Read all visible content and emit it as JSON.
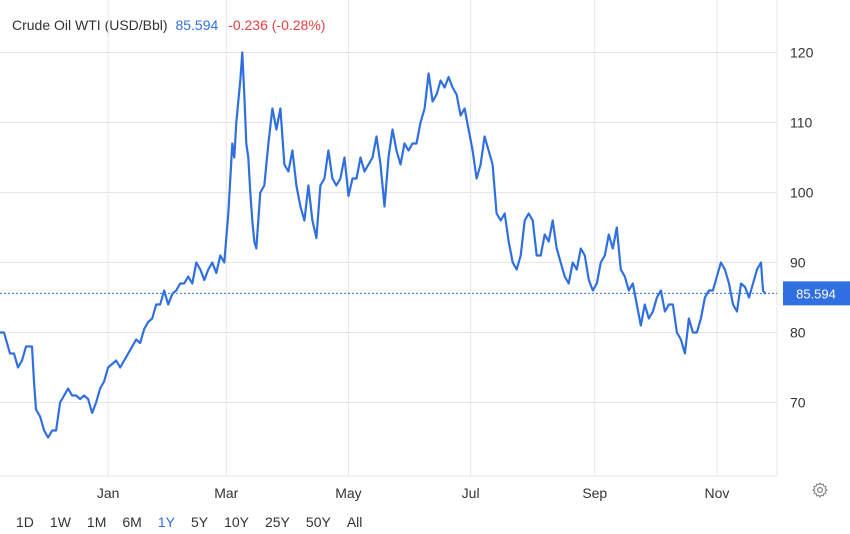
{
  "header": {
    "title": "Crude Oil WTI (USD/Bbl)",
    "price": "85.594",
    "change": "-0.236 (-0.28%)"
  },
  "current_label": "85.594",
  "ranges": [
    "1D",
    "1W",
    "1M",
    "6M",
    "1Y",
    "5Y",
    "10Y",
    "25Y",
    "50Y",
    "All"
  ],
  "active_range": "1Y",
  "icons": {
    "settings": "gear-icon"
  },
  "colors": {
    "line": "#2f6fdf",
    "negative": "#e5413f",
    "grid": "#e6e6e6"
  },
  "chart_data": {
    "type": "line",
    "title": "Crude Oil WTI (USD/Bbl)",
    "xlabel": "",
    "ylabel": "",
    "ylim": [
      59.5,
      127.5
    ],
    "yticks": [
      70,
      80,
      90,
      100,
      110,
      120
    ],
    "xticks": [
      {
        "label": "Jan",
        "date": "2022-01-01"
      },
      {
        "label": "Mar",
        "date": "2022-03-01"
      },
      {
        "label": "May",
        "date": "2022-05-01"
      },
      {
        "label": "Jul",
        "date": "2022-07-01"
      },
      {
        "label": "Sep",
        "date": "2022-09-01"
      },
      {
        "label": "Nov",
        "date": "2022-11-01"
      }
    ],
    "xrange": [
      "2021-11-08",
      "2022-11-25"
    ],
    "current_value": 85.594,
    "grid": true,
    "series": [
      {
        "points": [
          [
            "2021-11-08",
            80
          ],
          [
            "2021-11-10",
            80
          ],
          [
            "2021-11-13",
            77
          ],
          [
            "2021-11-15",
            77
          ],
          [
            "2021-11-17",
            75
          ],
          [
            "2021-11-19",
            76
          ],
          [
            "2021-11-21",
            78
          ],
          [
            "2021-11-24",
            78
          ],
          [
            "2021-11-25",
            73
          ],
          [
            "2021-11-26",
            69
          ],
          [
            "2021-11-28",
            68
          ],
          [
            "2021-11-30",
            66
          ],
          [
            "2021-12-02",
            65
          ],
          [
            "2021-12-04",
            66
          ],
          [
            "2021-12-06",
            66
          ],
          [
            "2021-12-08",
            70
          ],
          [
            "2021-12-10",
            71
          ],
          [
            "2021-12-12",
            72
          ],
          [
            "2021-12-14",
            71
          ],
          [
            "2021-12-16",
            71
          ],
          [
            "2021-12-18",
            70.5
          ],
          [
            "2021-12-20",
            71
          ],
          [
            "2021-12-22",
            70.5
          ],
          [
            "2021-12-24",
            68.5
          ],
          [
            "2021-12-26",
            70
          ],
          [
            "2021-12-28",
            72
          ],
          [
            "2021-12-30",
            73
          ],
          [
            "2022-01-01",
            75
          ],
          [
            "2022-01-03",
            75.5
          ],
          [
            "2022-01-05",
            76
          ],
          [
            "2022-01-07",
            75
          ],
          [
            "2022-01-09",
            76
          ],
          [
            "2022-01-11",
            77
          ],
          [
            "2022-01-13",
            78
          ],
          [
            "2022-01-15",
            79
          ],
          [
            "2022-01-17",
            78.5
          ],
          [
            "2022-01-19",
            80.5
          ],
          [
            "2022-01-21",
            81.5
          ],
          [
            "2022-01-23",
            82
          ],
          [
            "2022-01-25",
            84
          ],
          [
            "2022-01-27",
            84
          ],
          [
            "2022-01-29",
            86
          ],
          [
            "2022-01-31",
            84
          ],
          [
            "2022-02-02",
            85.5
          ],
          [
            "2022-02-04",
            86
          ],
          [
            "2022-02-06",
            87
          ],
          [
            "2022-02-08",
            87
          ],
          [
            "2022-02-10",
            88
          ],
          [
            "2022-02-12",
            87
          ],
          [
            "2022-02-14",
            90
          ],
          [
            "2022-02-16",
            89
          ],
          [
            "2022-02-18",
            87.5
          ],
          [
            "2022-02-20",
            89
          ],
          [
            "2022-02-22",
            90
          ],
          [
            "2022-02-24",
            88.5
          ],
          [
            "2022-02-26",
            91
          ],
          [
            "2022-02-28",
            90
          ],
          [
            "2022-03-02",
            97
          ],
          [
            "2022-03-04",
            107
          ],
          [
            "2022-03-05",
            105
          ],
          [
            "2022-03-06",
            110
          ],
          [
            "2022-03-07",
            113
          ],
          [
            "2022-03-08",
            116
          ],
          [
            "2022-03-09",
            120
          ],
          [
            "2022-03-10",
            114
          ],
          [
            "2022-03-11",
            107
          ],
          [
            "2022-03-12",
            105
          ],
          [
            "2022-03-13",
            100
          ],
          [
            "2022-03-14",
            96
          ],
          [
            "2022-03-15",
            93
          ],
          [
            "2022-03-16",
            92
          ],
          [
            "2022-03-18",
            100
          ],
          [
            "2022-03-20",
            101
          ],
          [
            "2022-03-22",
            107
          ],
          [
            "2022-03-24",
            112
          ],
          [
            "2022-03-26",
            109
          ],
          [
            "2022-03-28",
            112
          ],
          [
            "2022-03-30",
            104
          ],
          [
            "2022-04-01",
            103
          ],
          [
            "2022-04-03",
            106
          ],
          [
            "2022-04-05",
            101
          ],
          [
            "2022-04-07",
            98
          ],
          [
            "2022-04-09",
            96
          ],
          [
            "2022-04-11",
            101
          ],
          [
            "2022-04-13",
            96
          ],
          [
            "2022-04-15",
            93.5
          ],
          [
            "2022-04-17",
            101
          ],
          [
            "2022-04-19",
            102
          ],
          [
            "2022-04-21",
            106
          ],
          [
            "2022-04-23",
            102
          ],
          [
            "2022-04-25",
            101
          ],
          [
            "2022-04-27",
            102
          ],
          [
            "2022-04-29",
            105
          ],
          [
            "2022-05-01",
            99.5
          ],
          [
            "2022-05-03",
            102
          ],
          [
            "2022-05-05",
            102
          ],
          [
            "2022-05-07",
            105
          ],
          [
            "2022-05-09",
            103
          ],
          [
            "2022-05-11",
            104
          ],
          [
            "2022-05-13",
            105
          ],
          [
            "2022-05-15",
            108
          ],
          [
            "2022-05-17",
            104
          ],
          [
            "2022-05-19",
            98
          ],
          [
            "2022-05-21",
            105
          ],
          [
            "2022-05-23",
            109
          ],
          [
            "2022-05-25",
            106
          ],
          [
            "2022-05-27",
            104
          ],
          [
            "2022-05-29",
            107
          ],
          [
            "2022-05-31",
            106
          ],
          [
            "2022-06-02",
            107
          ],
          [
            "2022-06-04",
            107
          ],
          [
            "2022-06-06",
            110
          ],
          [
            "2022-06-08",
            112
          ],
          [
            "2022-06-10",
            117
          ],
          [
            "2022-06-12",
            113
          ],
          [
            "2022-06-14",
            114
          ],
          [
            "2022-06-16",
            116
          ],
          [
            "2022-06-18",
            115
          ],
          [
            "2022-06-20",
            116.5
          ],
          [
            "2022-06-22",
            115
          ],
          [
            "2022-06-24",
            114
          ],
          [
            "2022-06-26",
            111
          ],
          [
            "2022-06-28",
            112
          ],
          [
            "2022-06-30",
            109
          ],
          [
            "2022-07-02",
            106
          ],
          [
            "2022-07-04",
            102
          ],
          [
            "2022-07-06",
            104
          ],
          [
            "2022-07-08",
            108
          ],
          [
            "2022-07-10",
            106
          ],
          [
            "2022-07-12",
            104
          ],
          [
            "2022-07-14",
            97
          ],
          [
            "2022-07-16",
            96
          ],
          [
            "2022-07-18",
            97
          ],
          [
            "2022-07-20",
            93
          ],
          [
            "2022-07-22",
            90
          ],
          [
            "2022-07-24",
            89
          ],
          [
            "2022-07-26",
            91
          ],
          [
            "2022-07-28",
            96
          ],
          [
            "2022-07-30",
            97
          ],
          [
            "2022-08-01",
            96
          ],
          [
            "2022-08-03",
            91
          ],
          [
            "2022-08-05",
            91
          ],
          [
            "2022-08-07",
            94
          ],
          [
            "2022-08-09",
            93
          ],
          [
            "2022-08-11",
            96
          ],
          [
            "2022-08-13",
            92
          ],
          [
            "2022-08-15",
            90
          ],
          [
            "2022-08-17",
            88
          ],
          [
            "2022-08-19",
            87
          ],
          [
            "2022-08-21",
            90
          ],
          [
            "2022-08-23",
            89
          ],
          [
            "2022-08-25",
            92
          ],
          [
            "2022-08-27",
            91
          ],
          [
            "2022-08-29",
            87.5
          ],
          [
            "2022-08-31",
            86
          ],
          [
            "2022-09-02",
            87
          ],
          [
            "2022-09-04",
            90
          ],
          [
            "2022-09-06",
            91
          ],
          [
            "2022-09-08",
            94
          ],
          [
            "2022-09-10",
            92
          ],
          [
            "2022-09-12",
            95
          ],
          [
            "2022-09-14",
            89
          ],
          [
            "2022-09-16",
            88
          ],
          [
            "2022-09-18",
            86
          ],
          [
            "2022-09-20",
            87
          ],
          [
            "2022-09-22",
            84
          ],
          [
            "2022-09-24",
            81
          ],
          [
            "2022-09-26",
            84
          ],
          [
            "2022-09-28",
            82
          ],
          [
            "2022-09-30",
            83
          ],
          [
            "2022-10-02",
            85
          ],
          [
            "2022-10-04",
            86
          ],
          [
            "2022-10-06",
            83
          ],
          [
            "2022-10-08",
            84
          ],
          [
            "2022-10-10",
            84
          ],
          [
            "2022-10-12",
            80
          ],
          [
            "2022-10-14",
            79
          ],
          [
            "2022-10-16",
            77
          ],
          [
            "2022-10-18",
            82
          ],
          [
            "2022-10-20",
            80
          ],
          [
            "2022-10-22",
            80
          ],
          [
            "2022-10-24",
            82
          ],
          [
            "2022-10-26",
            85
          ],
          [
            "2022-10-28",
            86
          ],
          [
            "2022-10-30",
            86
          ],
          [
            "2022-11-01",
            88
          ],
          [
            "2022-11-03",
            90
          ],
          [
            "2022-11-05",
            89
          ],
          [
            "2022-11-07",
            87
          ],
          [
            "2022-11-09",
            84
          ],
          [
            "2022-11-11",
            83
          ],
          [
            "2022-11-13",
            87
          ],
          [
            "2022-11-15",
            86.5
          ],
          [
            "2022-11-17",
            85
          ],
          [
            "2022-11-19",
            87
          ],
          [
            "2022-11-21",
            89
          ],
          [
            "2022-11-23",
            90
          ],
          [
            "2022-11-24",
            86
          ],
          [
            "2022-11-25",
            85.594
          ]
        ]
      }
    ]
  }
}
